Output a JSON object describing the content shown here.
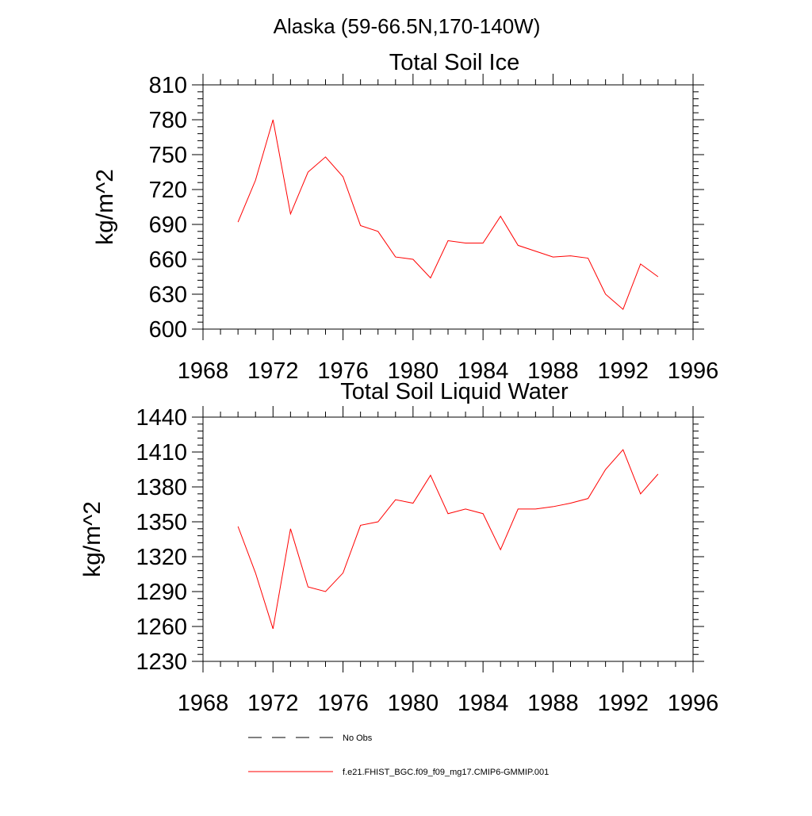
{
  "figure": {
    "title": "Alaska (59-66.5N,170-140W)",
    "legend": [
      {
        "label": "No Obs",
        "color": "#000000",
        "style": "dashed"
      },
      {
        "label": "f.e21.FHIST_BGC.f09_f09_mg17.CMIP6-GMMIP.001",
        "color": "#ff0000",
        "style": "solid"
      }
    ]
  },
  "chart_data": [
    {
      "type": "line",
      "title": "Total Soil Ice",
      "xlabel": "",
      "ylabel": "kg/m^2",
      "xlim": [
        1968,
        1996
      ],
      "ylim": [
        600,
        810
      ],
      "x_ticks": [
        "1968",
        "1972",
        "1976",
        "1980",
        "1984",
        "1988",
        "1992",
        "1996"
      ],
      "y_ticks": [
        "600",
        "630",
        "660",
        "690",
        "720",
        "750",
        "780",
        "810"
      ],
      "x": [
        1970,
        1971,
        1972,
        1973,
        1974,
        1975,
        1976,
        1977,
        1978,
        1979,
        1980,
        1981,
        1982,
        1983,
        1984,
        1985,
        1986,
        1987,
        1988,
        1989,
        1990,
        1991,
        1992,
        1993,
        1994
      ],
      "series": [
        {
          "name": "f.e21.FHIST_BGC.f09_f09_mg17.CMIP6-GMMIP.001",
          "color": "#ff0000",
          "values": [
            692,
            728,
            780,
            699,
            735,
            748,
            731,
            689,
            684,
            662,
            660,
            644,
            676,
            674,
            674,
            697,
            672,
            667,
            662,
            663,
            661,
            630,
            617,
            656,
            645
          ]
        }
      ]
    },
    {
      "type": "line",
      "title": "Total Soil Liquid Water",
      "xlabel": "",
      "ylabel": "kg/m^2",
      "xlim": [
        1968,
        1996
      ],
      "ylim": [
        1230,
        1440
      ],
      "x_ticks": [
        "1968",
        "1972",
        "1976",
        "1980",
        "1984",
        "1988",
        "1992",
        "1996"
      ],
      "y_ticks": [
        "1230",
        "1260",
        "1290",
        "1320",
        "1350",
        "1380",
        "1410",
        "1440"
      ],
      "x": [
        1970,
        1971,
        1972,
        1973,
        1974,
        1975,
        1976,
        1977,
        1978,
        1979,
        1980,
        1981,
        1982,
        1983,
        1984,
        1985,
        1986,
        1987,
        1988,
        1989,
        1990,
        1991,
        1992,
        1993,
        1994
      ],
      "series": [
        {
          "name": "f.e21.FHIST_BGC.f09_f09_mg17.CMIP6-GMMIP.001",
          "color": "#ff0000",
          "values": [
            1346,
            1306,
            1258,
            1344,
            1294,
            1290,
            1306,
            1347,
            1350,
            1369,
            1366,
            1390,
            1357,
            1361,
            1357,
            1326,
            1361,
            1361,
            1363,
            1366,
            1370,
            1395,
            1412,
            1374,
            1391
          ]
        }
      ]
    }
  ]
}
